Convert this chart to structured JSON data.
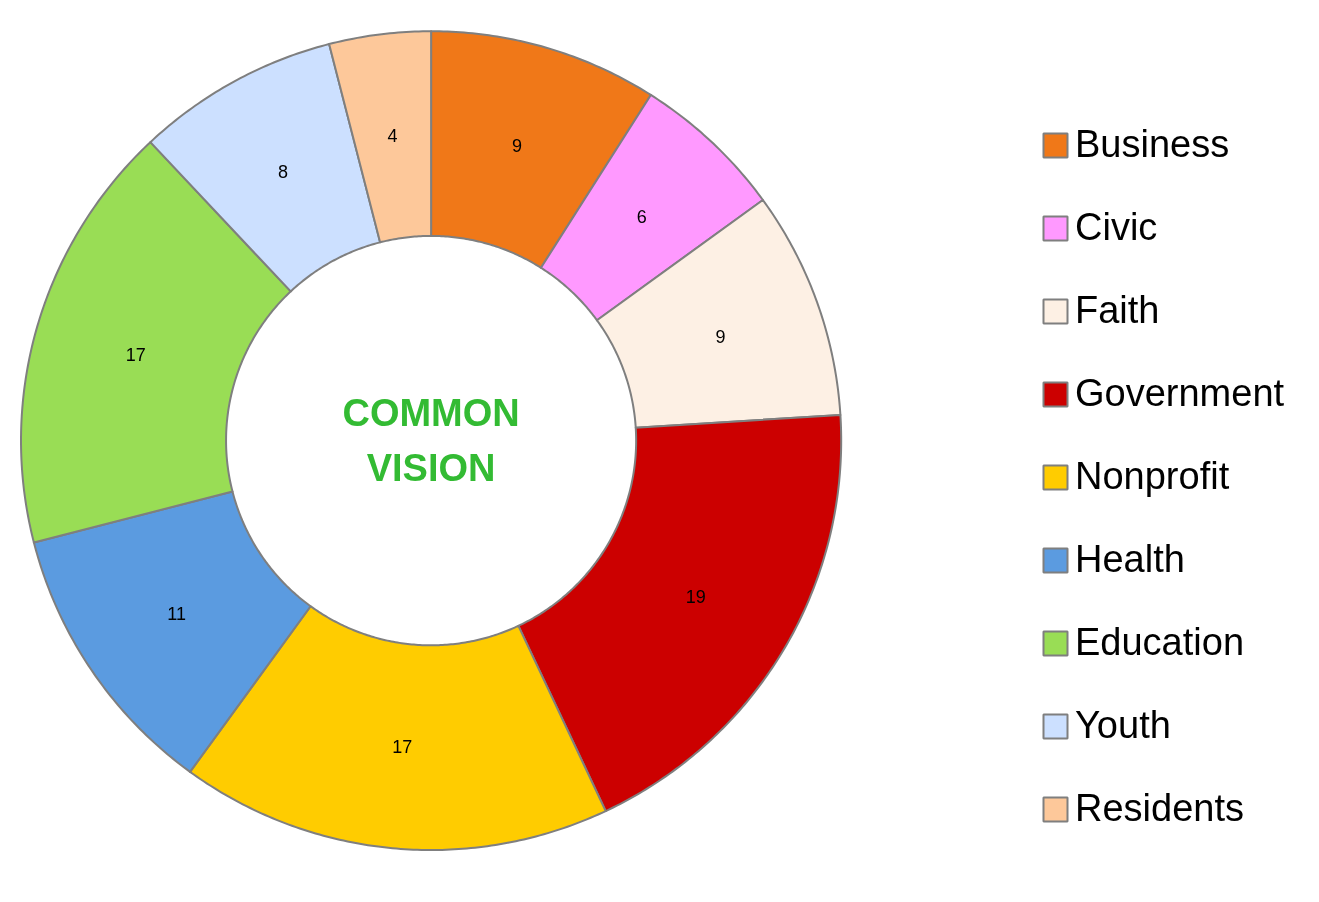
{
  "chart_data": {
    "type": "donut",
    "title": "COMMON\nVISION",
    "categories": [
      "Business",
      "Civic",
      "Faith",
      "Government",
      "Nonprofit",
      "Health",
      "Education",
      "Youth",
      "Residents"
    ],
    "values": [
      9,
      6,
      9,
      19,
      17,
      11,
      17,
      8,
      4
    ],
    "colors": [
      "#f07818",
      "#ff99ff",
      "#fdf0e4",
      "#cc0000",
      "#ffcc00",
      "#5b9be0",
      "#99dd55",
      "#cce0ff",
      "#fdc89a"
    ],
    "data_labels": true,
    "legend": "right"
  }
}
